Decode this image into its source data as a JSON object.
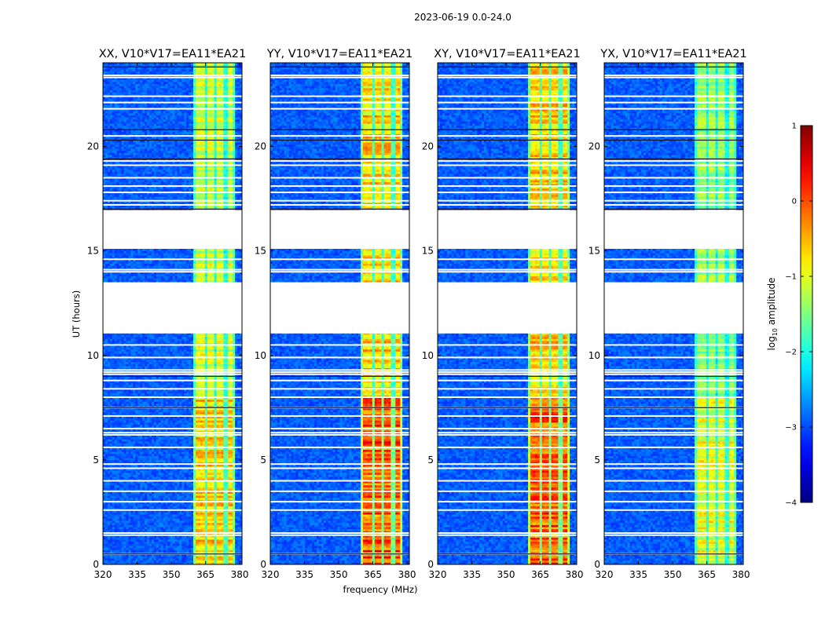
{
  "figure": {
    "suptitle": "2023-06-19 0.0-24.0",
    "ylabel": "UT (hours)",
    "xlabel": "frequency (MHz)"
  },
  "chart_data": {
    "type": "heatmap",
    "x": {
      "range": [
        320,
        381
      ],
      "ticks": [
        320,
        335,
        350,
        365,
        380
      ],
      "unit": "MHz"
    },
    "y": {
      "range": [
        0,
        24
      ],
      "ticks": [
        0,
        5,
        10,
        15,
        20
      ],
      "unit": "hours"
    },
    "panels": [
      {
        "title": "XX, V10*V17=EA11*EA21",
        "strength": 0.9
      },
      {
        "title": "YY, V10*V17=EA11*EA21",
        "strength": 1.15
      },
      {
        "title": "XY, V10*V17=EA11*EA21",
        "strength": 1.15
      },
      {
        "title": "YX, V10*V17=EA11*EA21",
        "strength": 0.75
      }
    ],
    "bright_band_mhz": [
      359.5,
      378
    ],
    "channel_gaps_mhz": [
      365.3,
      369.5,
      373.9
    ],
    "flagged_ut": [
      [
        13.5,
        15.1
      ],
      [
        11.05,
        16.95
      ]
    ],
    "gap_ut": [
      [
        13.55,
        15.05
      ],
      [
        11.1,
        16.95
      ]
    ],
    "missing_ut": [
      [
        11.1,
        13.5
      ],
      [
        15.1,
        16.9
      ]
    ],
    "white_lines_ut": [
      0.5,
      1.4,
      1.5,
      2.6,
      3.0,
      3.5,
      4.0,
      4.6,
      4.8,
      5.6,
      6.2,
      6.3,
      6.5,
      7.1,
      7.5,
      8.0,
      8.4,
      8.8,
      9.1,
      9.2,
      9.3,
      9.9,
      10.5,
      14.0,
      14.1,
      14.6,
      17.2,
      17.4,
      17.8,
      18.1,
      18.5,
      19.1,
      19.3,
      20.5,
      21.8,
      22.1,
      22.4,
      23.3,
      23.4
    ],
    "dark_lines_ut": [
      0.5,
      7.5,
      9.0,
      17.0,
      19.4,
      20.3,
      20.8,
      23.8
    ],
    "colorbar": {
      "label": "log10 amplitude",
      "label_main": "log",
      "label_sub": "10",
      "label_rest": " amplitude",
      "range": [
        -4,
        1
      ],
      "ticks": [
        1,
        0,
        -1,
        -2,
        -3,
        -4
      ],
      "tick_labels": [
        "1",
        "0",
        "−1",
        "−2",
        "−3",
        "−4"
      ],
      "colormap": "jet"
    }
  }
}
